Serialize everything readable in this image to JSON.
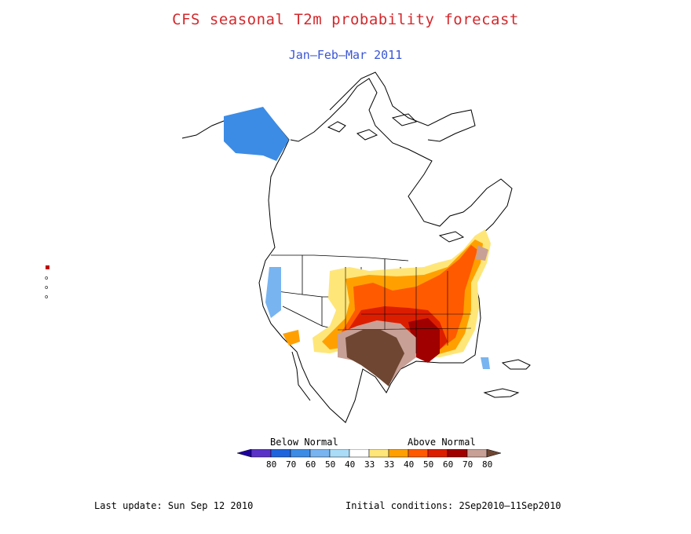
{
  "title": "CFS seasonal T2m probability forecast",
  "subtitle": "Jan–Feb–Mar 2011",
  "legend": {
    "below_label": "Below Normal",
    "above_label": "Above Normal",
    "ticks": [
      "80",
      "70",
      "60",
      "50",
      "40",
      "33",
      "33",
      "40",
      "50",
      "60",
      "70",
      "80"
    ],
    "colors": [
      "#1e00a0",
      "#5a32c8",
      "#1e64dc",
      "#3c8ce6",
      "#78b4f0",
      "#aadcf8",
      "#ffffff",
      "#ffe678",
      "#ffa000",
      "#ff5a00",
      "#dc1e00",
      "#a00000",
      "#c8a096",
      "#6e4632"
    ]
  },
  "footer": {
    "last_update": "Last update: Sun Sep 12 2010",
    "initial_conditions": "Initial conditions: 2Sep2010–11Sep2010"
  }
}
